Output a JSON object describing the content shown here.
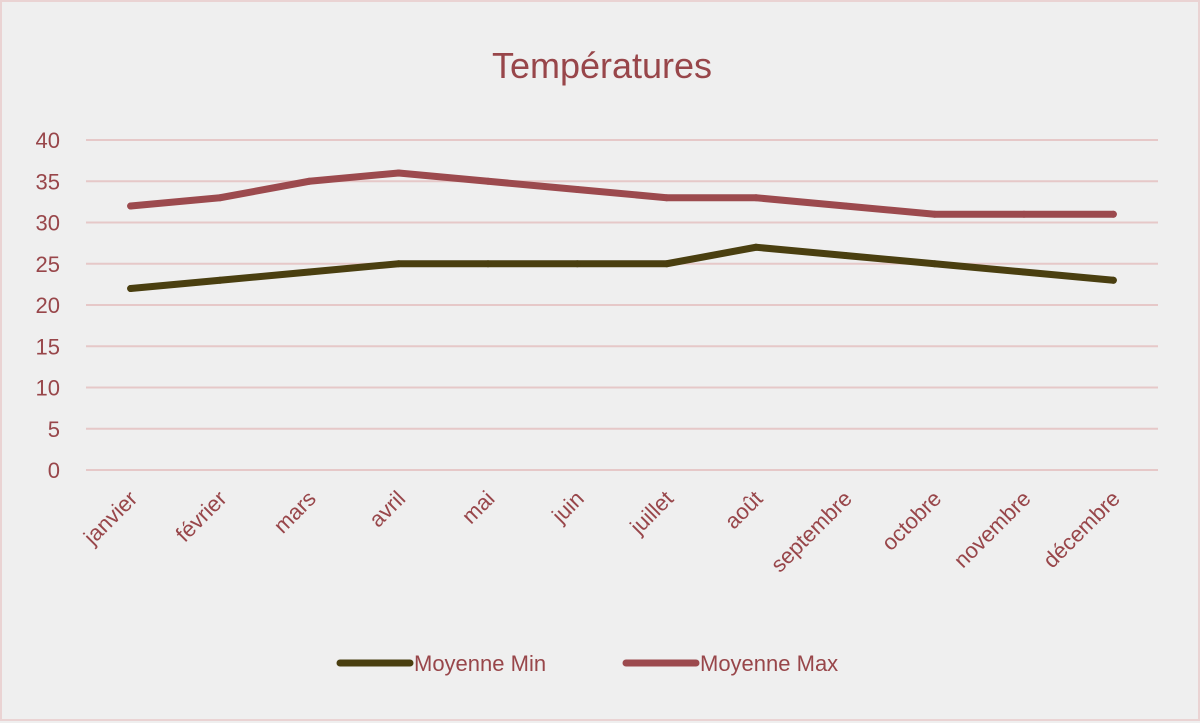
{
  "chart_data": {
    "type": "line",
    "title": "Températures",
    "categories": [
      "janvier",
      "février",
      "mars",
      "avril",
      "mai",
      "juin",
      "juillet",
      "août",
      "septembre",
      "octobre",
      "novembre",
      "décembre"
    ],
    "series": [
      {
        "name": "Moyenne Min",
        "color": "#4a3f10",
        "values": [
          22,
          23,
          24,
          25,
          25,
          25,
          25,
          27,
          26,
          25,
          24,
          23
        ]
      },
      {
        "name": "Moyenne Max",
        "color": "#9c4a4e",
        "values": [
          32,
          33,
          35,
          36,
          35,
          34,
          33,
          33,
          32,
          31,
          31,
          31
        ]
      }
    ],
    "xlabel": "",
    "ylabel": "",
    "ylim": [
      0,
      40
    ],
    "yticks": [
      "0",
      "5",
      "10",
      "15",
      "20",
      "25",
      "30",
      "35",
      "40"
    ],
    "grid": true,
    "legend": "bottom"
  }
}
